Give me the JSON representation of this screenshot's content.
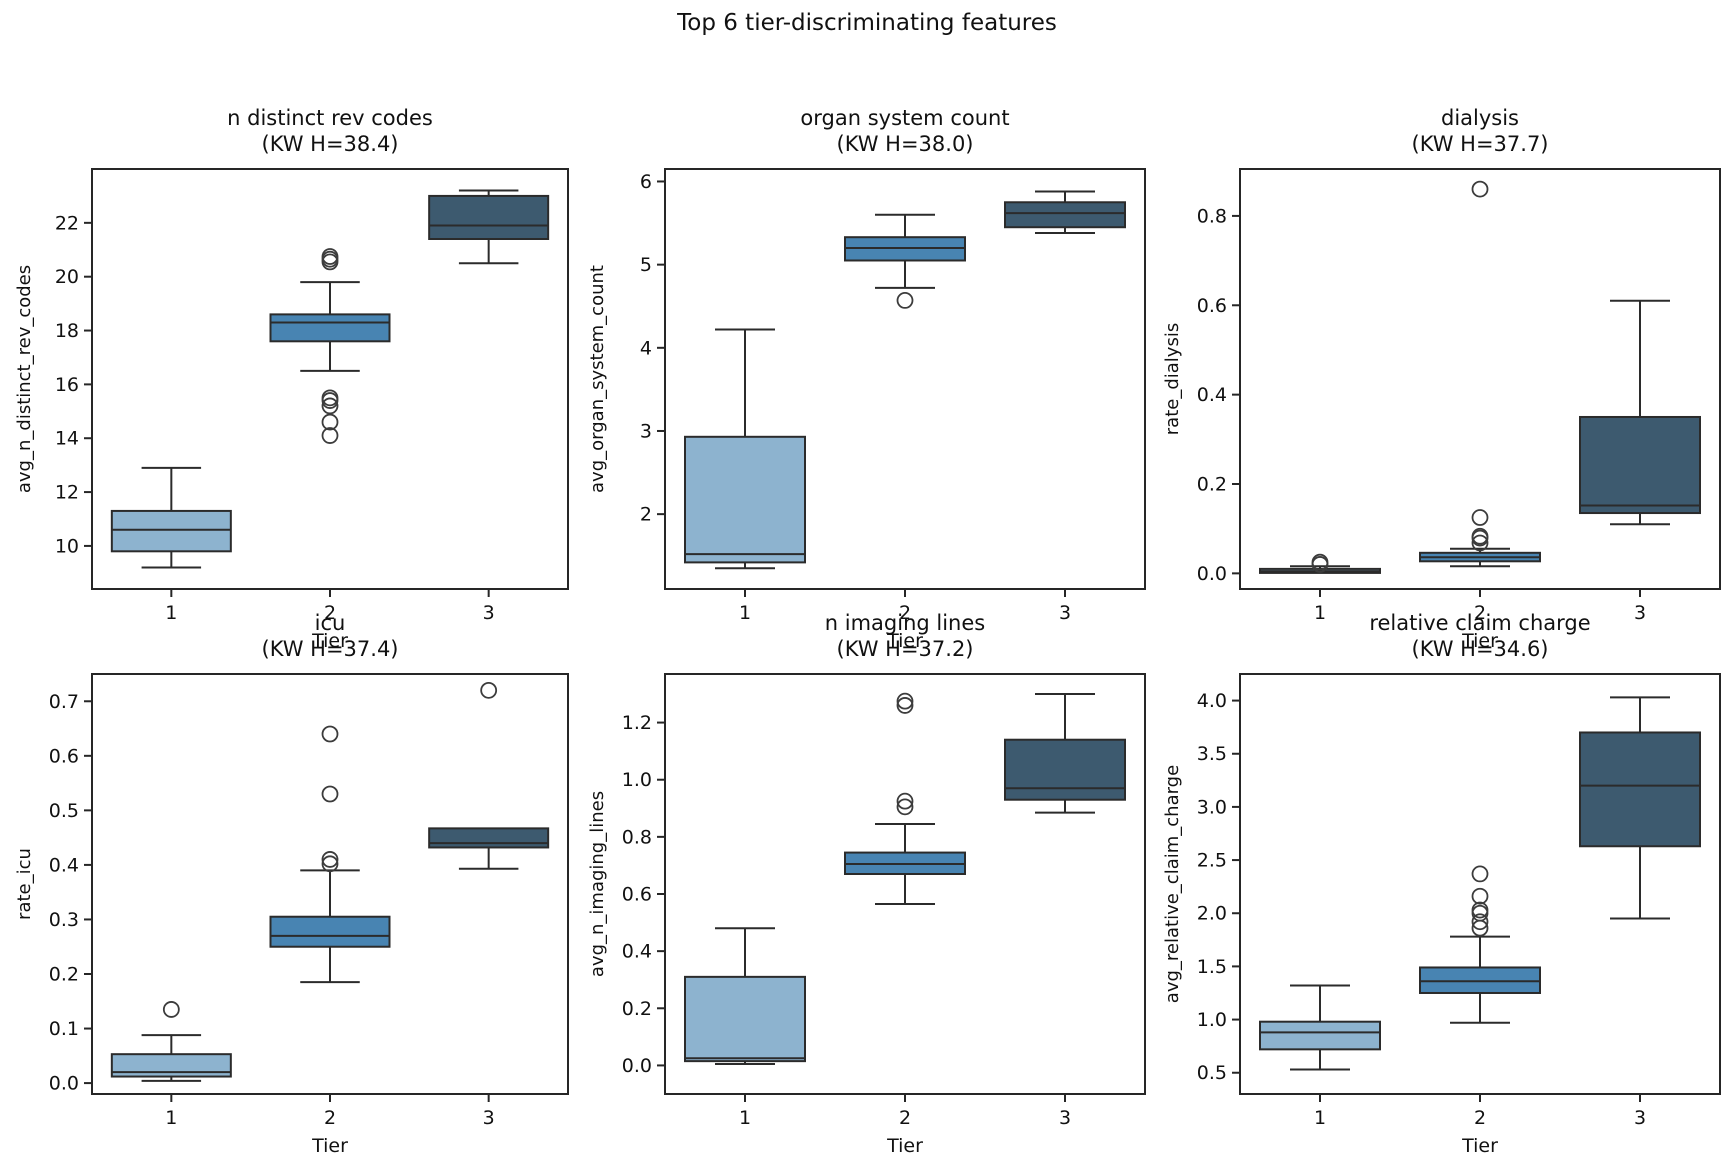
{
  "figure": {
    "title": "Top 6 tier-discriminating features",
    "xlabel_shared": "Tier",
    "tick_color": "#262626",
    "text_color": "#111111"
  },
  "palette": {
    "tier1": "#8DB3CF",
    "tier2": "#4884B2",
    "tier3": "#3D5A6F",
    "edge": "#2B2B2B",
    "flier_edge": "#3C3C3C",
    "background": "#FFFFFF"
  },
  "chart_data": [
    {
      "type": "boxplot",
      "title": "n distinct rev codes",
      "subtitle": "(KW H=38.4)",
      "kw_h": 38.4,
      "xlabel": "Tier",
      "ylabel": "avg_n_distinct_rev_codes",
      "categories": [
        "1",
        "2",
        "3"
      ],
      "ylim": [
        8.4,
        24.0
      ],
      "yticks": [
        10,
        12,
        14,
        16,
        18,
        20,
        22
      ],
      "ytick_labels": [
        "10",
        "12",
        "14",
        "16",
        "18",
        "20",
        "22"
      ],
      "boxes": [
        {
          "tier": "1",
          "color": "tier1",
          "whislo": 9.2,
          "q1": 9.8,
          "med": 10.6,
          "q3": 11.3,
          "whishi": 12.9,
          "fliers": []
        },
        {
          "tier": "2",
          "color": "tier2",
          "whislo": 16.5,
          "q1": 17.6,
          "med": 18.3,
          "q3": 18.6,
          "whishi": 19.8,
          "fliers": [
            20.55,
            20.65,
            20.75,
            15.5,
            15.4,
            15.2,
            14.6,
            14.1
          ]
        },
        {
          "tier": "3",
          "color": "tier3",
          "whislo": 20.5,
          "q1": 21.4,
          "med": 21.9,
          "q3": 23.0,
          "whishi": 23.2,
          "fliers": []
        }
      ]
    },
    {
      "type": "boxplot",
      "title": "organ system count",
      "subtitle": "(KW H=38.0)",
      "kw_h": 38.0,
      "xlabel": "Tier",
      "ylabel": "avg_organ_system_count",
      "categories": [
        "1",
        "2",
        "3"
      ],
      "ylim": [
        1.1,
        6.15
      ],
      "yticks": [
        2,
        3,
        4,
        5,
        6
      ],
      "ytick_labels": [
        "2",
        "3",
        "4",
        "5",
        "6"
      ],
      "boxes": [
        {
          "tier": "1",
          "color": "tier1",
          "whislo": 1.35,
          "q1": 1.42,
          "med": 1.52,
          "q3": 2.93,
          "whishi": 4.22,
          "fliers": []
        },
        {
          "tier": "2",
          "color": "tier2",
          "whislo": 4.72,
          "q1": 5.05,
          "med": 5.2,
          "q3": 5.33,
          "whishi": 5.6,
          "fliers": [
            4.57
          ]
        },
        {
          "tier": "3",
          "color": "tier3",
          "whislo": 5.38,
          "q1": 5.45,
          "med": 5.62,
          "q3": 5.75,
          "whishi": 5.88,
          "fliers": []
        }
      ]
    },
    {
      "type": "boxplot",
      "title": "dialysis",
      "subtitle": "(KW H=37.7)",
      "kw_h": 37.7,
      "xlabel": "Tier",
      "ylabel": "rate_dialysis",
      "categories": [
        "1",
        "2",
        "3"
      ],
      "ylim": [
        -0.035,
        0.905
      ],
      "yticks": [
        0.0,
        0.2,
        0.4,
        0.6,
        0.8
      ],
      "ytick_labels": [
        "0.0",
        "0.2",
        "0.4",
        "0.6",
        "0.8"
      ],
      "boxes": [
        {
          "tier": "1",
          "color": "tier1",
          "whislo": 0.0,
          "q1": 0.001,
          "med": 0.005,
          "q3": 0.01,
          "whishi": 0.016,
          "fliers": [
            0.02,
            0.025
          ]
        },
        {
          "tier": "2",
          "color": "tier2",
          "whislo": 0.016,
          "q1": 0.027,
          "med": 0.036,
          "q3": 0.046,
          "whishi": 0.055,
          "fliers": [
            0.068,
            0.079,
            0.083,
            0.125,
            0.86
          ]
        },
        {
          "tier": "3",
          "color": "tier3",
          "whislo": 0.11,
          "q1": 0.135,
          "med": 0.152,
          "q3": 0.35,
          "whishi": 0.61,
          "fliers": []
        }
      ]
    },
    {
      "type": "boxplot",
      "title": "icu",
      "subtitle": "(KW H=37.4)",
      "kw_h": 37.4,
      "xlabel": "Tier",
      "ylabel": "rate_icu",
      "categories": [
        "1",
        "2",
        "3"
      ],
      "ylim": [
        -0.02,
        0.75
      ],
      "yticks": [
        0.0,
        0.1,
        0.2,
        0.3,
        0.4,
        0.5,
        0.6,
        0.7
      ],
      "ytick_labels": [
        "0.0",
        "0.1",
        "0.2",
        "0.3",
        "0.4",
        "0.5",
        "0.6",
        "0.7"
      ],
      "boxes": [
        {
          "tier": "1",
          "color": "tier1",
          "whislo": 0.004,
          "q1": 0.012,
          "med": 0.02,
          "q3": 0.053,
          "whishi": 0.088,
          "fliers": [
            0.135
          ]
        },
        {
          "tier": "2",
          "color": "tier2",
          "whislo": 0.185,
          "q1": 0.25,
          "med": 0.27,
          "q3": 0.305,
          "whishi": 0.39,
          "fliers": [
            0.402,
            0.41,
            0.53,
            0.64
          ]
        },
        {
          "tier": "3",
          "color": "tier3",
          "whislo": 0.393,
          "q1": 0.432,
          "med": 0.44,
          "q3": 0.467,
          "whishi": 0.467,
          "fliers": [
            0.72
          ]
        }
      ]
    },
    {
      "type": "boxplot",
      "title": "n imaging lines",
      "subtitle": "(KW H=37.2)",
      "kw_h": 37.2,
      "xlabel": "Tier",
      "ylabel": "avg_n_imaging_lines",
      "categories": [
        "1",
        "2",
        "3"
      ],
      "ylim": [
        -0.1,
        1.37
      ],
      "yticks": [
        0.0,
        0.2,
        0.4,
        0.6,
        0.8,
        1.0,
        1.2
      ],
      "ytick_labels": [
        "0.0",
        "0.2",
        "0.4",
        "0.6",
        "0.8",
        "1.0",
        "1.2"
      ],
      "boxes": [
        {
          "tier": "1",
          "color": "tier1",
          "whislo": 0.005,
          "q1": 0.015,
          "med": 0.025,
          "q3": 0.31,
          "whishi": 0.48,
          "fliers": []
        },
        {
          "tier": "2",
          "color": "tier2",
          "whislo": 0.565,
          "q1": 0.67,
          "med": 0.705,
          "q3": 0.745,
          "whishi": 0.845,
          "fliers": [
            0.905,
            0.925,
            1.26,
            1.275
          ]
        },
        {
          "tier": "3",
          "color": "tier3",
          "whislo": 0.885,
          "q1": 0.93,
          "med": 0.97,
          "q3": 1.14,
          "whishi": 1.3,
          "fliers": []
        }
      ]
    },
    {
      "type": "boxplot",
      "title": "relative claim charge",
      "subtitle": "(KW H=34.6)",
      "kw_h": 34.6,
      "xlabel": "Tier",
      "ylabel": "avg_relative_claim_charge",
      "categories": [
        "1",
        "2",
        "3"
      ],
      "ylim": [
        0.3,
        4.25
      ],
      "yticks": [
        0.5,
        1.0,
        1.5,
        2.0,
        2.5,
        3.0,
        3.5,
        4.0
      ],
      "ytick_labels": [
        "0.5",
        "1.0",
        "1.5",
        "2.0",
        "2.5",
        "3.0",
        "3.5",
        "4.0"
      ],
      "boxes": [
        {
          "tier": "1",
          "color": "tier1",
          "whislo": 0.53,
          "q1": 0.72,
          "med": 0.88,
          "q3": 0.98,
          "whishi": 1.32,
          "fliers": []
        },
        {
          "tier": "2",
          "color": "tier2",
          "whislo": 0.97,
          "q1": 1.25,
          "med": 1.36,
          "q3": 1.49,
          "whishi": 1.78,
          "fliers": [
            1.86,
            1.92,
            2.0,
            2.03,
            2.16,
            2.37
          ]
        },
        {
          "tier": "3",
          "color": "tier3",
          "whislo": 1.95,
          "q1": 2.63,
          "med": 3.2,
          "q3": 3.7,
          "whishi": 4.03,
          "fliers": []
        }
      ]
    }
  ]
}
